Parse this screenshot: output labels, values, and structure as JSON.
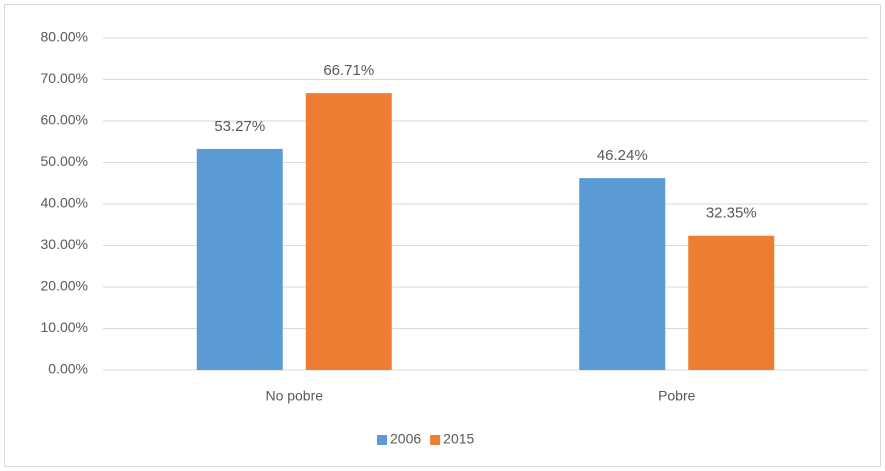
{
  "chart_data": {
    "type": "bar",
    "categories": [
      "No pobre",
      "Pobre"
    ],
    "series": [
      {
        "name": "2006",
        "color": "#5b9bd5",
        "values": [
          53.27,
          46.24
        ],
        "value_labels": [
          "53.27%",
          "46.24%"
        ]
      },
      {
        "name": "2015",
        "color": "#ed7d31",
        "values": [
          66.71,
          32.35
        ],
        "value_labels": [
          "66.71%",
          "32.35%"
        ]
      }
    ],
    "ylim": [
      0,
      80
    ],
    "yticks": [
      {
        "value": 0,
        "label": "0.00%"
      },
      {
        "value": 10,
        "label": "10.00%"
      },
      {
        "value": 20,
        "label": "20.00%"
      },
      {
        "value": 30,
        "label": "30.00%"
      },
      {
        "value": 40,
        "label": "40.00%"
      },
      {
        "value": 50,
        "label": "50.00%"
      },
      {
        "value": 60,
        "label": "60.00%"
      },
      {
        "value": 70,
        "label": "70.00%"
      },
      {
        "value": 80,
        "label": "80.00%"
      }
    ],
    "grid": true,
    "legend": "bottom"
  }
}
